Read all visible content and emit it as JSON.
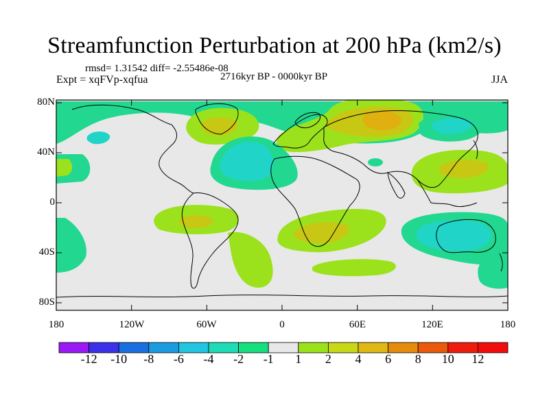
{
  "title": "Streamfunction Perturbation at 200 hPa (km2/s)",
  "stats": "rmsd= 1.31542 diff= -2.55486e-08",
  "experiment": "Expt = xqFVp-xqfua",
  "period": "2716kyr BP - 0000kyr BP",
  "season": "JJA",
  "lat_ticks": [
    "80N",
    "40N",
    "0",
    "40S",
    "80S"
  ],
  "lon_ticks": [
    "180",
    "120W",
    "60W",
    "0",
    "60E",
    "120E",
    "180"
  ],
  "colorbar": {
    "labels": [
      "-12",
      "-10",
      "-8",
      "-6",
      "-4",
      "-2",
      "-1",
      "1",
      "2",
      "4",
      "6",
      "8",
      "10",
      "12"
    ],
    "colors": [
      "#9b19f5",
      "#3a31e8",
      "#1a6fe0",
      "#1b9be0",
      "#22c6e0",
      "#1fdcb8",
      "#16df7e",
      "#e8e8e8",
      "#9be21c",
      "#c8d817",
      "#e0b814",
      "#e58c0c",
      "#ea5a0a",
      "#ee1c0c",
      "#f20c0c"
    ]
  },
  "colors": {
    "neutral": "#e8e8e8",
    "level_plus1": "#9be21c",
    "level_plus2": "#c8c814",
    "level_plus4": "#e0b010",
    "level_minus1": "#22d890",
    "level_minus2": "#20d4c8"
  }
}
